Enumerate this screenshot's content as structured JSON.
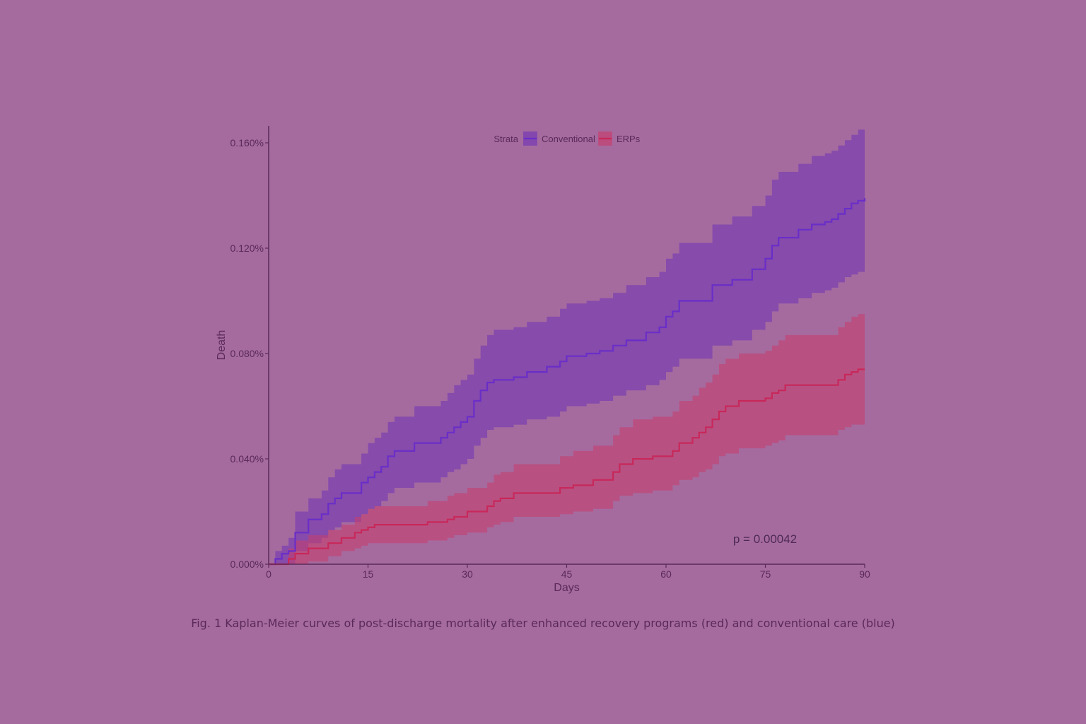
{
  "figure_caption": "Fig. 1  Kaplan-Meier curves of post-discharge mortality after enhanced recovery programs (red) and conventional care (blue)",
  "p_value_label": "p = 0.00042",
  "colors": {
    "background": "#a56b9f",
    "axis": "#5a2a58",
    "conventional_line": "#6a2ec8",
    "conventional_band": "#7a3fb0",
    "erps_line": "#c8285a",
    "erps_band": "#c44070"
  },
  "chart_data": {
    "type": "line",
    "title": "",
    "xlabel": "Days",
    "ylabel": "Death",
    "xlim": [
      0,
      90
    ],
    "ylim": [
      0,
      0.165
    ],
    "x_ticks": [
      0,
      15,
      30,
      45,
      60,
      75,
      90
    ],
    "x_tick_labels": [
      "0",
      "15",
      "30",
      "45",
      "60",
      "75",
      "90"
    ],
    "y_ticks": [
      0,
      0.04,
      0.08,
      0.12,
      0.16
    ],
    "y_tick_labels": [
      "0.000%",
      "0.040%",
      "0.080%",
      "0.120%",
      "0.160%"
    ],
    "grid": false,
    "step": true,
    "legend": {
      "title": "Strata",
      "placement": "top-center",
      "entries": [
        "Conventional",
        "ERPs"
      ]
    },
    "series": [
      {
        "name": "Conventional",
        "x": [
          0,
          1,
          2,
          3,
          4,
          6,
          8,
          9,
          10,
          11,
          12,
          14,
          15,
          16,
          17,
          18,
          19,
          20,
          22,
          26,
          27,
          28,
          29,
          30,
          31,
          32,
          33,
          34,
          35,
          37,
          39,
          42,
          44,
          45,
          48,
          50,
          52,
          54,
          57,
          59,
          60,
          61,
          62,
          64,
          67,
          70,
          73,
          75,
          76,
          77,
          80,
          82,
          84,
          85,
          86,
          87,
          88,
          89,
          90
        ],
        "y": [
          0,
          0.002,
          0.004,
          0.005,
          0.012,
          0.017,
          0.019,
          0.023,
          0.025,
          0.027,
          0.027,
          0.031,
          0.033,
          0.035,
          0.037,
          0.041,
          0.043,
          0.043,
          0.046,
          0.048,
          0.05,
          0.052,
          0.054,
          0.056,
          0.062,
          0.066,
          0.069,
          0.07,
          0.07,
          0.071,
          0.073,
          0.075,
          0.077,
          0.079,
          0.08,
          0.081,
          0.083,
          0.085,
          0.088,
          0.09,
          0.094,
          0.096,
          0.1,
          0.1,
          0.106,
          0.108,
          0.112,
          0.116,
          0.121,
          0.124,
          0.127,
          0.129,
          0.13,
          0.131,
          0.133,
          0.135,
          0.137,
          0.138,
          0.139
        ],
        "upper": [
          0,
          0.005,
          0.007,
          0.01,
          0.02,
          0.025,
          0.028,
          0.033,
          0.036,
          0.038,
          0.038,
          0.042,
          0.046,
          0.048,
          0.05,
          0.054,
          0.056,
          0.056,
          0.06,
          0.062,
          0.065,
          0.068,
          0.07,
          0.072,
          0.078,
          0.083,
          0.087,
          0.089,
          0.089,
          0.09,
          0.092,
          0.094,
          0.097,
          0.099,
          0.1,
          0.101,
          0.103,
          0.106,
          0.109,
          0.111,
          0.116,
          0.118,
          0.122,
          0.122,
          0.129,
          0.132,
          0.136,
          0.14,
          0.146,
          0.149,
          0.152,
          0.155,
          0.156,
          0.157,
          0.159,
          0.161,
          0.163,
          0.165,
          0.167
        ],
        "lower": [
          0,
          0,
          0,
          0,
          0.005,
          0.008,
          0.01,
          0.013,
          0.014,
          0.016,
          0.016,
          0.019,
          0.021,
          0.022,
          0.024,
          0.027,
          0.029,
          0.029,
          0.031,
          0.033,
          0.035,
          0.036,
          0.038,
          0.04,
          0.045,
          0.048,
          0.051,
          0.052,
          0.052,
          0.053,
          0.055,
          0.056,
          0.058,
          0.06,
          0.061,
          0.062,
          0.064,
          0.066,
          0.068,
          0.07,
          0.073,
          0.075,
          0.078,
          0.078,
          0.083,
          0.085,
          0.089,
          0.092,
          0.096,
          0.099,
          0.101,
          0.103,
          0.104,
          0.105,
          0.107,
          0.109,
          0.11,
          0.111,
          0.112
        ]
      },
      {
        "name": "ERPs",
        "x": [
          0,
          3,
          4,
          6,
          9,
          11,
          13,
          14,
          15,
          16,
          20,
          24,
          27,
          28,
          30,
          33,
          34,
          35,
          37,
          40,
          44,
          46,
          49,
          51,
          52,
          53,
          55,
          58,
          61,
          62,
          64,
          65,
          66,
          67,
          68,
          69,
          70,
          71,
          75,
          76,
          77,
          78,
          80,
          84,
          85,
          86,
          87,
          88,
          89,
          90
        ],
        "y": [
          0,
          0.002,
          0.004,
          0.006,
          0.008,
          0.01,
          0.012,
          0.013,
          0.014,
          0.015,
          0.015,
          0.016,
          0.017,
          0.018,
          0.02,
          0.022,
          0.024,
          0.025,
          0.027,
          0.027,
          0.029,
          0.03,
          0.032,
          0.032,
          0.035,
          0.038,
          0.04,
          0.041,
          0.043,
          0.046,
          0.048,
          0.05,
          0.052,
          0.055,
          0.058,
          0.06,
          0.06,
          0.062,
          0.063,
          0.065,
          0.066,
          0.068,
          0.068,
          0.068,
          0.068,
          0.07,
          0.072,
          0.073,
          0.074,
          0.074
        ],
        "upper": [
          0,
          0.006,
          0.009,
          0.011,
          0.013,
          0.015,
          0.018,
          0.019,
          0.021,
          0.022,
          0.022,
          0.024,
          0.026,
          0.027,
          0.029,
          0.031,
          0.034,
          0.035,
          0.038,
          0.038,
          0.041,
          0.043,
          0.045,
          0.045,
          0.049,
          0.052,
          0.055,
          0.056,
          0.058,
          0.062,
          0.064,
          0.067,
          0.069,
          0.072,
          0.076,
          0.078,
          0.078,
          0.08,
          0.081,
          0.083,
          0.085,
          0.087,
          0.087,
          0.087,
          0.087,
          0.09,
          0.092,
          0.094,
          0.095,
          0.095
        ],
        "lower": [
          0,
          0,
          0,
          0.001,
          0.003,
          0.005,
          0.006,
          0.007,
          0.008,
          0.008,
          0.008,
          0.009,
          0.01,
          0.011,
          0.012,
          0.014,
          0.015,
          0.016,
          0.018,
          0.018,
          0.019,
          0.02,
          0.021,
          0.021,
          0.024,
          0.026,
          0.027,
          0.028,
          0.03,
          0.032,
          0.033,
          0.035,
          0.036,
          0.038,
          0.041,
          0.042,
          0.042,
          0.044,
          0.045,
          0.046,
          0.047,
          0.049,
          0.049,
          0.049,
          0.049,
          0.051,
          0.052,
          0.053,
          0.053,
          0.053
        ]
      }
    ],
    "annotations": [
      "p = 0.00042"
    ]
  }
}
